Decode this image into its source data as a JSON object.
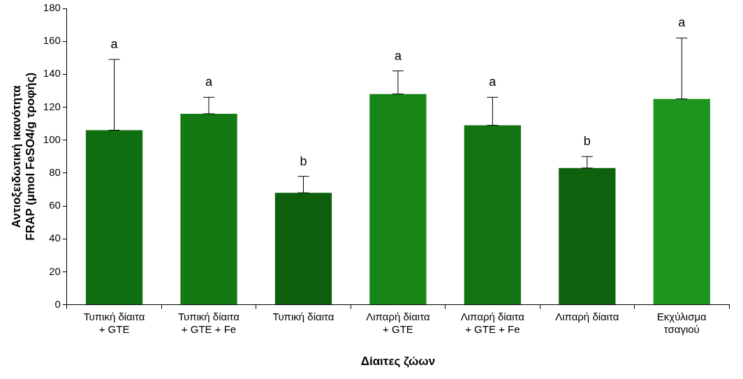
{
  "chart_data": {
    "type": "bar",
    "xlabel": "Δίαιτες ζώων",
    "ylabel": "Αντιοξειδωτική ικανότητα\nFRAP (μmol FeSO4/g τροφής)",
    "categories": [
      "Τυπική δίαιτα\n+ GTE",
      "Τυπική δίαιτα\n+ GTE + Fe",
      "Τυπική δίαιτα",
      "Λιπαρή δίαιτα\n+ GTE",
      "Λιπαρή δίαιτα\n+ GTE + Fe",
      "Λιπαρή δίαιτα",
      "Εκχύλισμα\nτσαγιού"
    ],
    "values": [
      106,
      116,
      68,
      128,
      109,
      83,
      125
    ],
    "colors": [
      "#0f6e0f",
      "#137a13",
      "#0d5e0d",
      "#168516",
      "#127312",
      "#0e620e",
      "#1f951f"
    ],
    "errors": [
      [
        106,
        149
      ],
      [
        116,
        126
      ],
      [
        68,
        78
      ],
      [
        128,
        142
      ],
      [
        109,
        126
      ],
      [
        83,
        90
      ],
      [
        125,
        162
      ]
    ],
    "ylim": [
      0,
      180
    ],
    "yticks": [
      0,
      20,
      40,
      60,
      80,
      100,
      120,
      140,
      160,
      180
    ],
    "grid": false,
    "legend": false,
    "annotations": [
      {
        "text": "a",
        "x": "Τυπική δίαιτα\n+ GTE",
        "y": 149
      },
      {
        "text": "a",
        "x": "Τυπική δίαιτα\n+ GTE + Fe",
        "y": 126
      },
      {
        "text": "b",
        "x": "Τυπική δίαιτα",
        "y": 78
      },
      {
        "text": "a",
        "x": "Λιπαρή δίαιτα\n+ GTE",
        "y": 142
      },
      {
        "text": "a",
        "x": "Λιπαρή δίαιτα\n+ GTE + Fe",
        "y": 126
      },
      {
        "text": "b",
        "x": "Λιπαρή δίαιτα",
        "y": 90
      },
      {
        "text": "a",
        "x": "Εκχύλισμα\nτσαγιού",
        "y": 162
      }
    ]
  }
}
